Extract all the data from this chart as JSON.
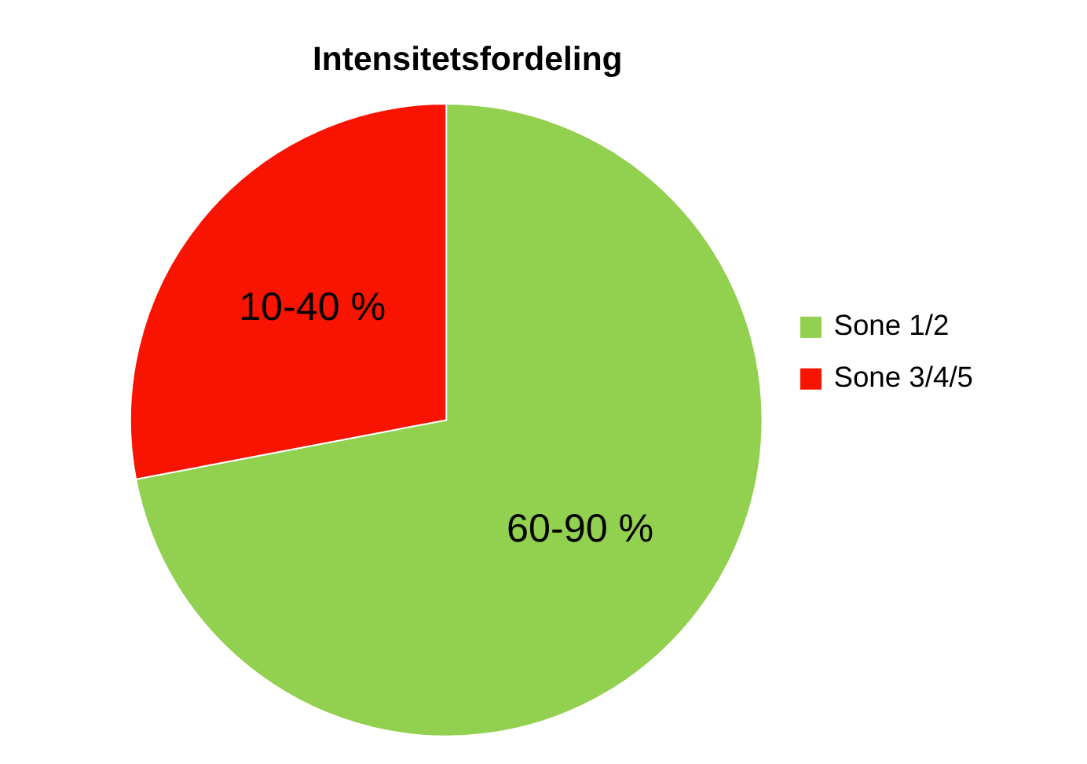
{
  "chart_data": {
    "type": "pie",
    "title": "Intensitetsfordeling",
    "categories": [
      "Sone 1/2",
      "Sone 3/4/5"
    ],
    "values": [
      72,
      28
    ],
    "colors": [
      "#92d050",
      "#f81400"
    ],
    "annotations": [
      "60-90 %",
      "10-40 %"
    ],
    "legend": "right"
  }
}
